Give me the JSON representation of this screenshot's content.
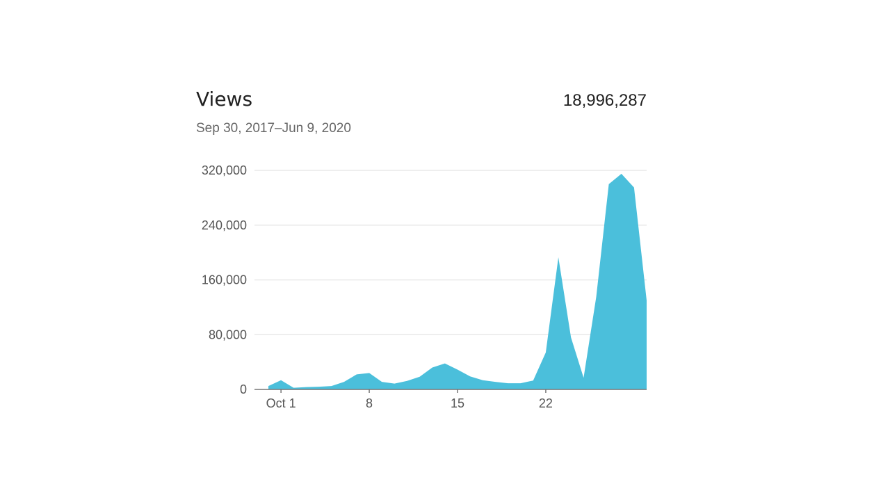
{
  "header": {
    "title": "Views",
    "total": "18,996,287",
    "date_range": "Sep 30, 2017–Jun 9, 2020"
  },
  "chart_data": {
    "type": "area",
    "title": "Views",
    "color": "#4bbfdb",
    "x": [
      "Sep 30",
      "Oct 1",
      "Oct 2",
      "Oct 3",
      "Oct 4",
      "Oct 5",
      "Oct 6",
      "Oct 7",
      "Oct 8",
      "Oct 9",
      "Oct 10",
      "Oct 11",
      "Oct 12",
      "Oct 13",
      "Oct 14",
      "Oct 15",
      "Oct 16",
      "Oct 17",
      "Oct 18",
      "Oct 19",
      "Oct 20",
      "Oct 21",
      "Oct 22",
      "Oct 23",
      "Oct 24",
      "Oct 25",
      "Oct 26",
      "Oct 27",
      "Oct 28",
      "Oct 29",
      "Oct 30"
    ],
    "values": [
      5000,
      13500,
      2400,
      3400,
      4000,
      5000,
      11000,
      22000,
      24000,
      11000,
      8500,
      12500,
      18600,
      32000,
      38000,
      29000,
      19000,
      13500,
      11000,
      9000,
      9000,
      13000,
      54000,
      193000,
      76000,
      17000,
      135000,
      300000,
      315000,
      295000,
      130000
    ],
    "x_ticks": [
      {
        "index": 1,
        "label": "Oct 1"
      },
      {
        "index": 8,
        "label": "8"
      },
      {
        "index": 15,
        "label": "15"
      },
      {
        "index": 22,
        "label": "22"
      }
    ],
    "y_ticks": [
      0,
      80000,
      160000,
      240000,
      320000
    ],
    "y_tick_labels": [
      "0",
      "80,000",
      "160,000",
      "240,000",
      "320,000"
    ],
    "ylim": [
      0,
      320000
    ],
    "grid": true
  }
}
